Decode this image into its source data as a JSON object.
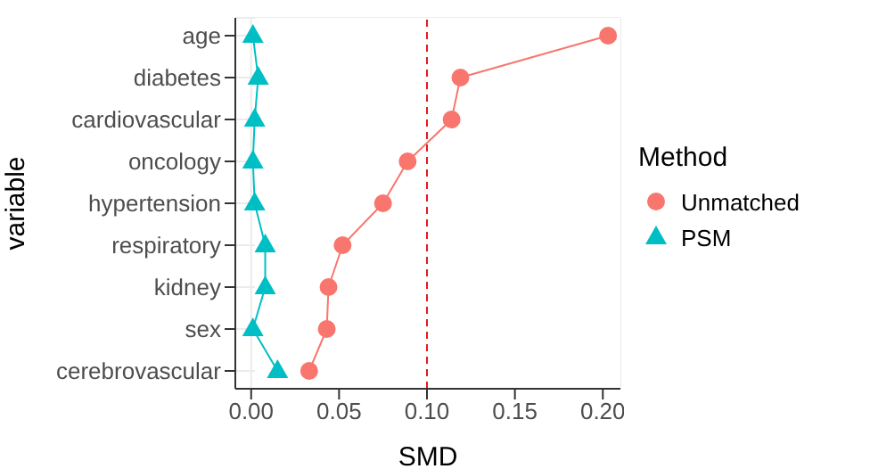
{
  "chart_data": {
    "type": "line",
    "orientation": "horizontal",
    "xlabel": "SMD",
    "ylabel": "variable",
    "legend_title": "Method",
    "legend": "right",
    "categories": [
      "age",
      "diabetes",
      "cardiovascular",
      "oncology",
      "hypertension",
      "respiratory",
      "kidney",
      "sex",
      "cerebrovascular"
    ],
    "series": [
      {
        "name": "Unmatched",
        "color": "#f8766d",
        "marker": "circle",
        "values": [
          0.203,
          0.119,
          0.114,
          0.089,
          0.075,
          0.052,
          0.044,
          0.043,
          0.033
        ]
      },
      {
        "name": "PSM",
        "color": "#00bfc4",
        "marker": "triangle",
        "values": [
          0.001,
          0.004,
          0.002,
          0.001,
          0.002,
          0.008,
          0.008,
          0.001,
          0.015
        ]
      }
    ],
    "xlim": [
      -0.009,
      0.21
    ],
    "xticks": [
      {
        "value": 0,
        "label": "0.00"
      },
      {
        "value": 0.05,
        "label": "0.05"
      },
      {
        "value": 0.1,
        "label": "0.10"
      },
      {
        "value": 0.15,
        "label": "0.15"
      },
      {
        "value": 0.2,
        "label": "0.20"
      }
    ],
    "grid": true,
    "ref_lines": [
      {
        "axis": "x",
        "value": 0.1,
        "color": "#e41a1c",
        "line_style": "dashed"
      }
    ]
  }
}
